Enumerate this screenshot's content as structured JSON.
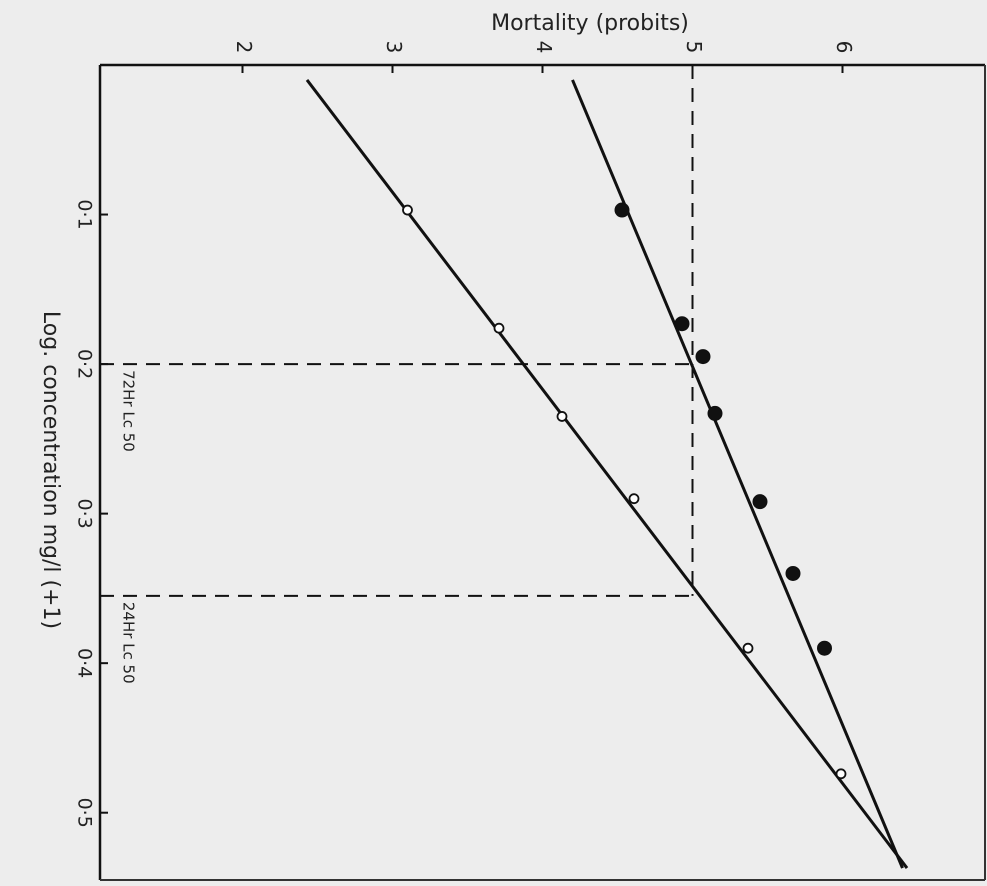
{
  "chart_data": {
    "type": "scatter",
    "title": "Mortality (probits)",
    "xlabel": "Log. concentration mg/l (+1)",
    "xlim": [
      0,
      0.545
    ],
    "xticks": [
      {
        "value": 0.1,
        "label": "0·1"
      },
      {
        "value": 0.2,
        "label": "0·2"
      },
      {
        "value": 0.3,
        "label": "0·3"
      },
      {
        "value": 0.4,
        "label": "0·4"
      },
      {
        "value": 0.5,
        "label": "0·5"
      }
    ],
    "ylim": [
      1.05,
      6.95
    ],
    "yticks": [
      2,
      3,
      4,
      5,
      6
    ],
    "series": [
      {
        "marker": "open",
        "color": "#111111",
        "x": [
          0.097,
          0.176,
          0.235,
          0.29,
          0.39,
          0.474
        ],
        "values": [
          3.1,
          3.71,
          4.13,
          4.61,
          5.37,
          5.99
        ]
      },
      {
        "marker": "filled",
        "color": "#111111",
        "x": [
          0.097,
          0.173,
          0.195,
          0.233,
          0.292,
          0.34,
          0.39
        ],
        "values": [
          4.53,
          4.93,
          5.07,
          5.15,
          5.45,
          5.67,
          5.88
        ]
      }
    ],
    "fit_lines": [
      {
        "x": [
          0.01,
          0.537
        ],
        "values": [
          2.43,
          6.43
        ]
      },
      {
        "x": [
          0.01,
          0.537
        ],
        "values": [
          4.2,
          6.4
        ]
      }
    ],
    "reference_probit": 5,
    "lc50": [
      {
        "x": 0.2,
        "label": "72Hr Lc 50"
      },
      {
        "x": 0.355,
        "label": "24Hr Lc 50"
      }
    ]
  }
}
